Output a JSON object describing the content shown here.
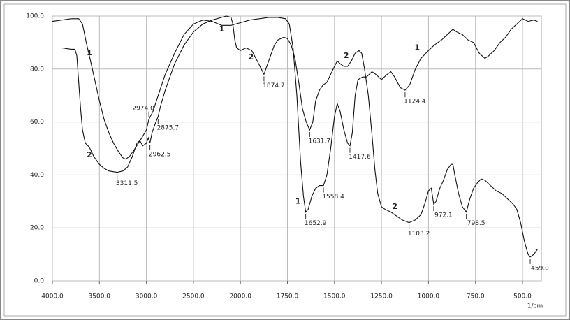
{
  "chart_data": {
    "type": "line",
    "xlabel": "1/cm",
    "xlim": [
      4000,
      400
    ],
    "xticks": [
      {
        "value": 4000,
        "label": "4000.0"
      },
      {
        "value": 3500,
        "label": "3500.0"
      },
      {
        "value": 3000,
        "label": "3000.0"
      },
      {
        "value": 2500,
        "label": "2500.0"
      },
      {
        "value": 2000,
        "label": "2000.0"
      },
      {
        "value": 1750,
        "label": "1750.0"
      },
      {
        "value": 1500,
        "label": "1500.0"
      },
      {
        "value": 1250,
        "label": "1250.0"
      },
      {
        "value": 1000,
        "label": "1000.0"
      },
      {
        "value": 750,
        "label": "750.0"
      },
      {
        "value": 500,
        "label": "500.0"
      }
    ],
    "ylim": [
      0,
      100
    ],
    "yticks": [
      {
        "value": 0,
        "label": "0.0"
      },
      {
        "value": 20,
        "label": "20.0"
      },
      {
        "value": 40,
        "label": "40.0"
      },
      {
        "value": 60,
        "label": "60.0"
      },
      {
        "value": 80,
        "label": "80.0"
      },
      {
        "value": 100,
        "label": "100.0"
      }
    ],
    "grid": true,
    "series": [
      {
        "name": "1",
        "color": "#111111",
        "x": [
          4000,
          3900,
          3800,
          3720,
          3680,
          3640,
          3600,
          3550,
          3500,
          3450,
          3400,
          3350,
          3300,
          3250,
          3220,
          3180,
          3120,
          3050,
          3000,
          2974,
          2930,
          2875,
          2800,
          2700,
          2600,
          2500,
          2400,
          2300,
          2200,
          2100,
          2050,
          2000,
          1950,
          1900,
          1850,
          1800,
          1760,
          1740,
          1720,
          1700,
          1680,
          1665,
          1652.9,
          1640,
          1620,
          1600,
          1580,
          1558.4,
          1540,
          1520,
          1500,
          1485,
          1470,
          1450,
          1430,
          1417.6,
          1405,
          1390,
          1375,
          1350,
          1330,
          1300,
          1280,
          1250,
          1220,
          1200,
          1180,
          1150,
          1124.4,
          1100,
          1070,
          1040,
          1000,
          970,
          930,
          900,
          870,
          850,
          820,
          790,
          760,
          730,
          700,
          680,
          650,
          620,
          590,
          560,
          530,
          500,
          470,
          440,
          420
        ],
        "values": [
          98,
          98.5,
          99,
          99,
          97,
          90,
          84,
          76,
          68,
          61,
          56,
          52,
          49,
          46.5,
          46,
          47,
          50,
          54,
          57,
          61,
          64,
          70,
          78,
          86,
          93,
          97,
          98.5,
          98,
          96.5,
          96.5,
          97,
          97.5,
          98.5,
          99,
          99.5,
          99.5,
          99,
          97,
          88,
          70,
          45,
          32,
          26,
          27,
          32,
          35,
          36,
          36,
          40,
          50,
          62,
          67,
          64,
          57,
          52,
          51,
          56,
          70,
          76,
          77,
          77,
          79,
          78,
          76,
          78,
          79,
          77,
          73,
          72,
          74,
          80,
          84,
          87,
          89,
          91,
          93,
          95,
          94,
          93,
          91,
          90,
          86,
          84,
          85,
          87,
          90,
          92,
          95,
          97,
          99,
          98,
          98.5,
          98
        ],
        "labels": [
          {
            "x": 3607,
            "y": 86
          },
          {
            "x": 2200,
            "y": 95
          },
          {
            "x": 1694,
            "y": 30
          },
          {
            "x": 1060,
            "y": 88
          }
        ]
      },
      {
        "name": "2",
        "color": "#111111",
        "x": [
          4000,
          3900,
          3800,
          3760,
          3740,
          3720,
          3700,
          3680,
          3650,
          3620,
          3600,
          3560,
          3500,
          3450,
          3400,
          3311.5,
          3250,
          3200,
          3150,
          3100,
          3070,
          3040,
          3000,
          2980,
          2962.5,
          2940,
          2900,
          2875.7,
          2850,
          2800,
          2700,
          2600,
          2500,
          2400,
          2300,
          2200,
          2150,
          2100,
          2080,
          2060,
          2040,
          2000,
          1970,
          1940,
          1910,
          1874.7,
          1850,
          1820,
          1800,
          1770,
          1750,
          1730,
          1710,
          1690,
          1670,
          1650,
          1631.7,
          1615,
          1600,
          1580,
          1560,
          1540,
          1520,
          1500,
          1485,
          1470,
          1450,
          1430,
          1410,
          1390,
          1370,
          1355,
          1340,
          1320,
          1300,
          1285,
          1270,
          1250,
          1230,
          1200,
          1170,
          1140,
          1103.2,
          1070,
          1040,
          1020,
          1000,
          985,
          972.1,
          960,
          940,
          920,
          900,
          880,
          870,
          860,
          840,
          820,
          798.5,
          780,
          760,
          740,
          720,
          700,
          670,
          640,
          610,
          580,
          550,
          530,
          510,
          490,
          470,
          459,
          440,
          420
        ],
        "values": [
          88,
          88,
          87.5,
          87.5,
          85,
          75,
          65,
          57,
          52,
          51,
          50,
          47,
          44,
          42.5,
          41.5,
          41,
          41.5,
          43,
          47,
          52,
          53,
          51,
          52,
          54,
          52,
          56,
          60,
          62,
          66,
          72,
          82,
          89,
          94,
          97,
          98.5,
          99.5,
          100,
          99.5,
          97,
          91,
          88,
          87,
          88,
          87,
          83,
          78,
          83,
          89,
          91,
          92,
          91.5,
          89,
          84,
          75,
          65,
          60,
          57,
          60,
          68,
          72,
          74,
          75,
          78,
          81,
          83,
          82,
          81,
          81,
          83,
          86,
          87,
          86,
          80,
          70,
          55,
          42,
          33,
          28,
          27,
          26,
          24.5,
          23,
          22,
          23,
          25,
          29,
          34,
          35,
          29,
          30,
          35,
          38,
          42,
          44,
          44,
          40,
          33,
          28,
          26,
          31,
          35,
          37,
          38.5,
          38,
          36,
          34,
          33,
          31,
          29,
          27,
          22,
          15,
          10,
          9,
          10,
          12
        ],
        "labels": [
          {
            "x": 3607,
            "y": 47.5
          },
          {
            "x": 1944,
            "y": 84.4
          },
          {
            "x": 1437,
            "y": 85
          },
          {
            "x": 1179,
            "y": 28
          }
        ]
      }
    ],
    "annotations": [
      {
        "label": "3311.5",
        "x": 3311.5,
        "y": 41
      },
      {
        "label": "2974.0",
        "x": 2974,
        "y": 61,
        "position": "above"
      },
      {
        "label": "2962.5",
        "x": 2962.5,
        "y": 52
      },
      {
        "label": "2875.7",
        "x": 2875.7,
        "y": 62
      },
      {
        "label": "1874.7",
        "x": 1874.7,
        "y": 78
      },
      {
        "label": "1631.7",
        "x": 1631.7,
        "y": 57
      },
      {
        "label": "1652.9",
        "x": 1652.9,
        "y": 26
      },
      {
        "label": "1558.4",
        "x": 1558.4,
        "y": 36
      },
      {
        "label": "1417.6",
        "x": 1417.6,
        "y": 51
      },
      {
        "label": "1124.4",
        "x": 1124.4,
        "y": 72
      },
      {
        "label": "1103.2",
        "x": 1103.2,
        "y": 22
      },
      {
        "label": "972.1",
        "x": 972.1,
        "y": 29
      },
      {
        "label": "798.5",
        "x": 798.5,
        "y": 26
      },
      {
        "label": "459.0",
        "x": 459,
        "y": 9
      }
    ]
  }
}
